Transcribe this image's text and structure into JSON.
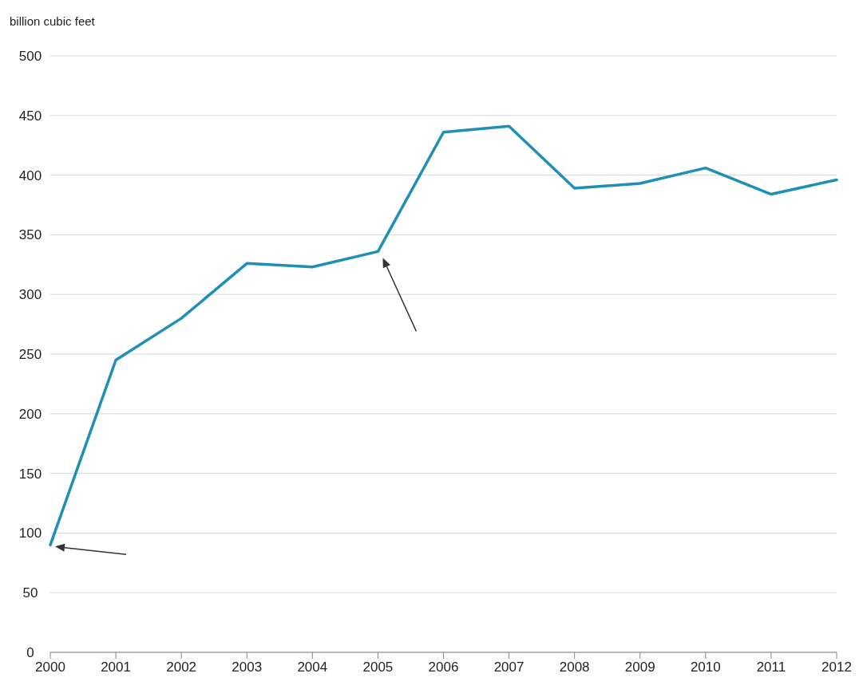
{
  "chart_data": {
    "type": "line",
    "ylabel": "billion cubic feet",
    "categories": [
      "2000",
      "2001",
      "2002",
      "2003",
      "2004",
      "2005",
      "2006",
      "2007",
      "2008",
      "2009",
      "2010",
      "2011",
      "2012"
    ],
    "series": [
      {
        "color": "#1f8fb6",
        "values": [
          90,
          245,
          280,
          326,
          323,
          336,
          436,
          441,
          389,
          393,
          406,
          384,
          396
        ]
      }
    ],
    "ylim": [
      0,
      500
    ],
    "yticks": [
      0,
      50,
      100,
      150,
      200,
      250,
      300,
      350,
      400,
      450,
      500
    ],
    "grid": "y",
    "marker": "none",
    "line_style": "solid"
  }
}
